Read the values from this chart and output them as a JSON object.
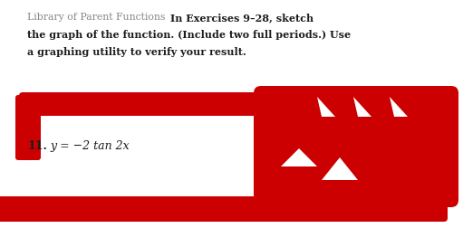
{
  "background_color": "#ffffff",
  "gray_text": "Library of Parent Functions",
  "bold_line1": "In Exercises 9–28, sketch",
  "bold_line2": "the graph of the function. (Include two full periods.) Use",
  "bold_line3": "a graphing utility to verify your result.",
  "exercise_num": "11.",
  "equation": "y = −2 tan 2x",
  "red_color": "#cc0000",
  "text_dark": "#1c1c1c",
  "gray_color": "#888888",
  "fig_width": 5.11,
  "fig_height": 2.53,
  "dpi": 100
}
